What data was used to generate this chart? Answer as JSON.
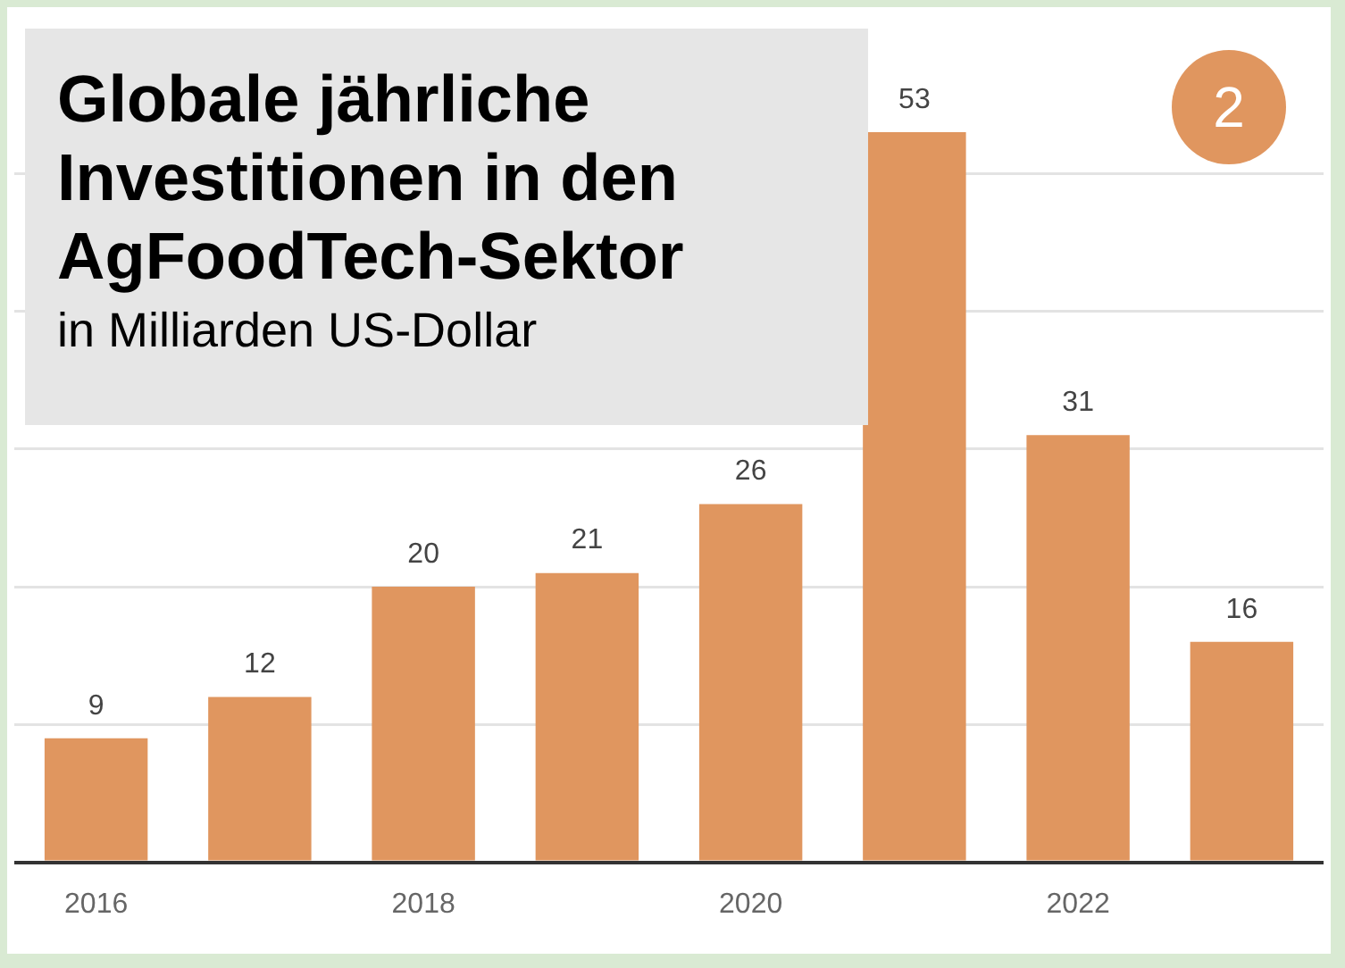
{
  "chart_data": {
    "type": "bar",
    "title": "Globale jährliche Investitionen in den AgFoodTech-Sektor",
    "subtitle": "in Milliarden US-Dollar",
    "categories": [
      "2016",
      null,
      "2018",
      null,
      "2020",
      null,
      "2022",
      null
    ],
    "values": [
      9,
      12,
      20,
      21,
      26,
      53,
      31,
      16
    ],
    "color": "#e0965f",
    "yticks": [
      {
        "value": 0,
        "label": null
      },
      {
        "value": 10,
        "label": null
      },
      {
        "value": 20,
        "label": null
      },
      {
        "value": 30,
        "label": null
      },
      {
        "value": 40,
        "label": null
      },
      {
        "value": 50,
        "label": null
      }
    ],
    "grid": "y",
    "tick_labels": "x",
    "data_labels": true,
    "annotations": [
      "2"
    ]
  }
}
